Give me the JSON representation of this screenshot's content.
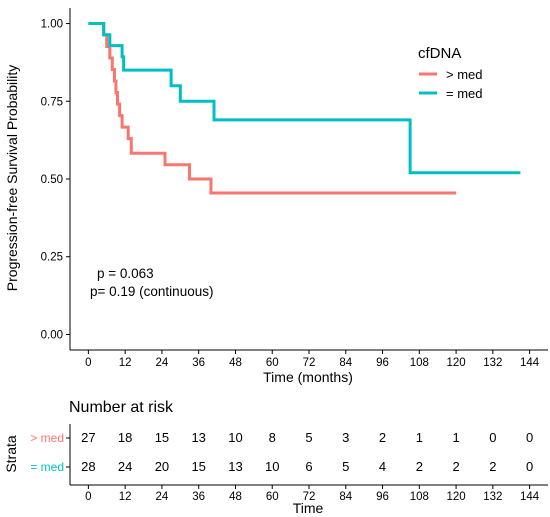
{
  "chart_data": {
    "type": "line",
    "subtype": "kaplan-meier step",
    "xlabel": "Time (months)",
    "ylabel": "Progression-free Survival Probability",
    "xlim": [
      -6,
      150
    ],
    "ylim": [
      -0.05,
      1.05
    ],
    "x_ticks": [
      0,
      12,
      24,
      36,
      48,
      60,
      72,
      84,
      96,
      108,
      120,
      132,
      144
    ],
    "x_tick_labels": [
      "0",
      "12",
      "24",
      "36",
      "48",
      "60",
      "72",
      "84",
      "96",
      "108",
      "120",
      "132",
      "144"
    ],
    "y_ticks": [
      0,
      0.25,
      0.5,
      0.75,
      1.0
    ],
    "y_tick_labels": [
      "0.00",
      "0.25",
      "0.50",
      "0.75",
      "1.00"
    ],
    "legend": {
      "title": "cfDNA",
      "placement": "top-right"
    },
    "annotations": [
      "p = 0.063",
      "p= 0.19 (continuous)"
    ],
    "series": [
      {
        "name": "> med",
        "color": "#F8766D",
        "points": [
          [
            0,
            1.0
          ],
          [
            5,
            1.0
          ],
          [
            5,
            0.963
          ],
          [
            6,
            0.963
          ],
          [
            6,
            0.926
          ],
          [
            7,
            0.926
          ],
          [
            7,
            0.889
          ],
          [
            7.8,
            0.889
          ],
          [
            7.8,
            0.852
          ],
          [
            8.5,
            0.852
          ],
          [
            8.5,
            0.815
          ],
          [
            9,
            0.815
          ],
          [
            9,
            0.778
          ],
          [
            9.5,
            0.778
          ],
          [
            9.5,
            0.741
          ],
          [
            10.2,
            0.741
          ],
          [
            10.2,
            0.704
          ],
          [
            11,
            0.704
          ],
          [
            11,
            0.667
          ],
          [
            13,
            0.667
          ],
          [
            13,
            0.63
          ],
          [
            14,
            0.63
          ],
          [
            14,
            0.583
          ],
          [
            25,
            0.583
          ],
          [
            25,
            0.546
          ],
          [
            33,
            0.546
          ],
          [
            33,
            0.5
          ],
          [
            40,
            0.5
          ],
          [
            40,
            0.455
          ],
          [
            48,
            0.455
          ],
          [
            120,
            0.455
          ]
        ]
      },
      {
        "name": "= med",
        "color": "#00BFC4",
        "points": [
          [
            0,
            1.0
          ],
          [
            5,
            1.0
          ],
          [
            5,
            0.964
          ],
          [
            7,
            0.964
          ],
          [
            7,
            0.929
          ],
          [
            11,
            0.929
          ],
          [
            11,
            0.893
          ],
          [
            11.5,
            0.893
          ],
          [
            11.5,
            0.85
          ],
          [
            27,
            0.85
          ],
          [
            27,
            0.8
          ],
          [
            30,
            0.8
          ],
          [
            30,
            0.75
          ],
          [
            36,
            0.75
          ],
          [
            36,
            0.75
          ],
          [
            41,
            0.75
          ],
          [
            41,
            0.69
          ],
          [
            105,
            0.69
          ],
          [
            105,
            0.52
          ],
          [
            141,
            0.52
          ]
        ]
      }
    ]
  },
  "risk_table": {
    "title": "Number at risk",
    "strata_label": "Strata",
    "xlabel": "Time",
    "times": [
      0,
      12,
      24,
      36,
      48,
      60,
      72,
      84,
      96,
      108,
      120,
      132,
      144
    ],
    "time_labels": [
      "0",
      "12",
      "24",
      "36",
      "48",
      "60",
      "72",
      "84",
      "96",
      "108",
      "120",
      "132",
      "144"
    ],
    "rows": [
      {
        "label": "> med",
        "color": "#F8766D",
        "values": [
          "27",
          "18",
          "15",
          "13",
          "10",
          "8",
          "5",
          "3",
          "2",
          "1",
          "1",
          "0",
          "0"
        ]
      },
      {
        "label": "= med",
        "color": "#00BFC4",
        "values": [
          "28",
          "24",
          "20",
          "15",
          "13",
          "10",
          "6",
          "5",
          "4",
          "2",
          "2",
          "2",
          "0"
        ]
      }
    ]
  }
}
